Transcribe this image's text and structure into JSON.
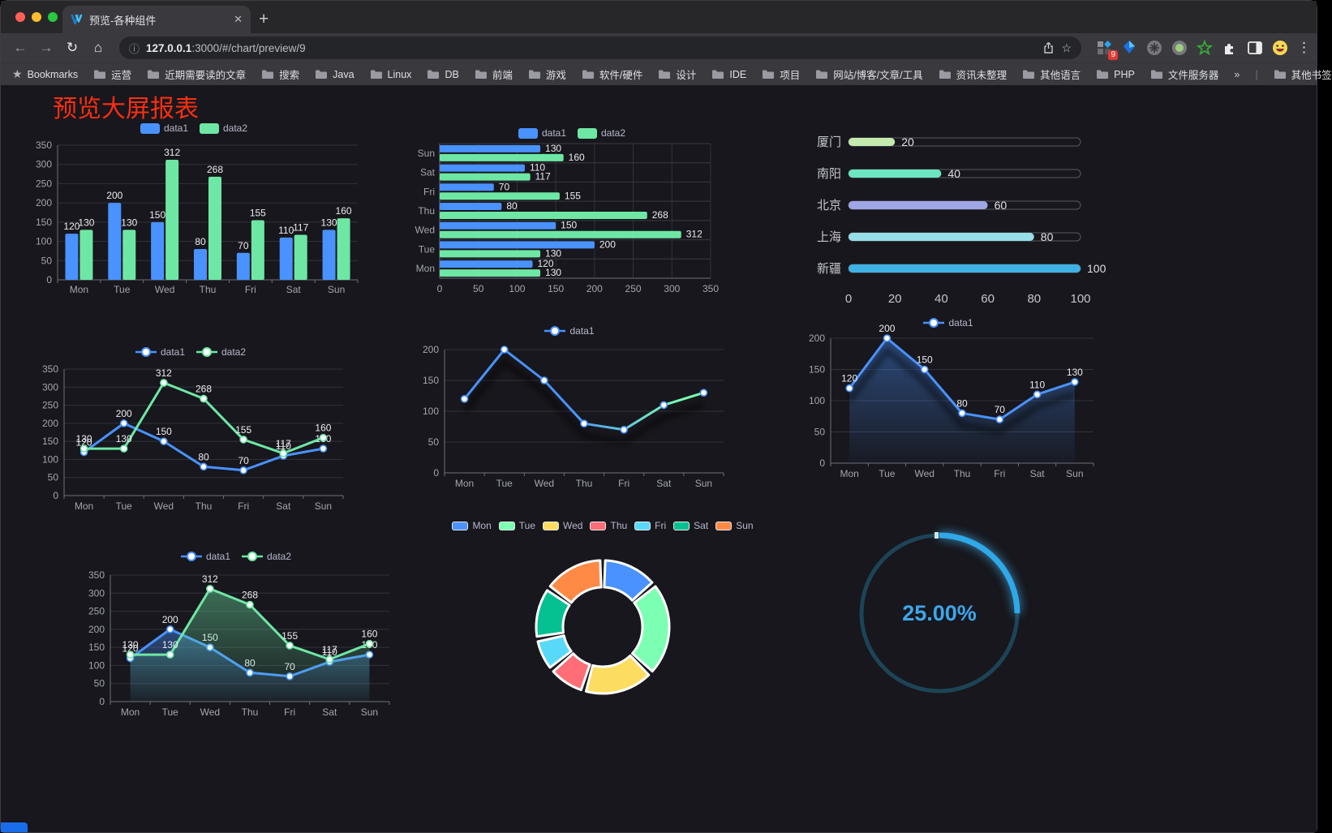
{
  "browser": {
    "tab": {
      "title": "预览-各种组件",
      "close_glyph": "✕",
      "new_tab_glyph": "+"
    },
    "toolbar": {
      "back_glyph": "←",
      "forward_glyph": "→",
      "reload_glyph": "↻",
      "home_glyph": "⌂",
      "url_info_glyph": "ⓘ",
      "url_host": "127.0.0.1",
      "url_rest": ":3000/#/chart/preview/9",
      "star_glyph": "☆",
      "menu_glyph": "⋮",
      "extension_badge": "9"
    },
    "bookmarks": {
      "bar_label": "Bookmarks",
      "star_glyph": "★",
      "folders": [
        "运营",
        "近期需要读的文章",
        "搜索",
        "Java",
        "Linux",
        "DB",
        "前端",
        "游戏",
        "软件/硬件",
        "设计",
        "IDE",
        "项目",
        "网站/博客/文章/工具",
        "资讯未整理",
        "其他语言",
        "PHP",
        "文件服务器"
      ],
      "overflow_glyph": "»",
      "other_bookmarks": "其他书签"
    }
  },
  "page": {
    "title": "预览大屏报表",
    "title_color": "#fa2e10"
  },
  "chart_data": [
    {
      "id": "bar-vertical",
      "type": "bar",
      "categories": [
        "Mon",
        "Tue",
        "Wed",
        "Thu",
        "Fri",
        "Sat",
        "Sun"
      ],
      "series": [
        {
          "name": "data1",
          "color": "#4992ff",
          "values": [
            120,
            200,
            150,
            80,
            70,
            110,
            130
          ]
        },
        {
          "name": "data2",
          "color": "#6ee7a4",
          "values": [
            130,
            130,
            312,
            268,
            155,
            117,
            160
          ]
        }
      ],
      "ylim": [
        0,
        350
      ],
      "ytick": 50,
      "legend_position": "top"
    },
    {
      "id": "bar-horizontal",
      "type": "bar-horizontal",
      "categories": [
        "Mon",
        "Tue",
        "Wed",
        "Thu",
        "Fri",
        "Sat",
        "Sun"
      ],
      "series": [
        {
          "name": "data1",
          "color": "#4992ff",
          "values": [
            120,
            200,
            150,
            80,
            70,
            110,
            130
          ]
        },
        {
          "name": "data2",
          "color": "#6ee7a4",
          "values": [
            130,
            130,
            312,
            268,
            155,
            117,
            160
          ]
        }
      ],
      "xlim": [
        0,
        350
      ],
      "xtick": 50,
      "legend_position": "top"
    },
    {
      "id": "progress-bars",
      "type": "progress",
      "items": [
        {
          "label": "厦门",
          "value": 20,
          "color": "#c4ebad"
        },
        {
          "label": "南阳",
          "value": 40,
          "color": "#6be6c1"
        },
        {
          "label": "北京",
          "value": 60,
          "color": "#a0a7e6"
        },
        {
          "label": "上海",
          "value": 80,
          "color": "#96dee8"
        },
        {
          "label": "新疆",
          "value": 100,
          "color": "#3fb1e3"
        }
      ],
      "xlim": [
        0,
        100
      ],
      "ticks": [
        0,
        20,
        40,
        60,
        80,
        100
      ]
    },
    {
      "id": "line-two-series",
      "type": "line",
      "categories": [
        "Mon",
        "Tue",
        "Wed",
        "Thu",
        "Fri",
        "Sat",
        "Sun"
      ],
      "series": [
        {
          "name": "data1",
          "color": "#4992ff",
          "values": [
            120,
            200,
            150,
            80,
            70,
            110,
            130
          ],
          "labels": true
        },
        {
          "name": "data2",
          "color": "#6ee7a4",
          "values": [
            130,
            130,
            312,
            268,
            155,
            117,
            160
          ],
          "labels": true
        }
      ],
      "ylim": [
        0,
        350
      ],
      "ytick": 50,
      "legend_position": "top"
    },
    {
      "id": "line-gradient",
      "type": "line",
      "categories": [
        "Mon",
        "Tue",
        "Wed",
        "Thu",
        "Fri",
        "Sat",
        "Sun"
      ],
      "series": [
        {
          "name": "data1",
          "color": "#4992ff",
          "gradient": [
            "#4992ff",
            "#7cffb2"
          ],
          "values": [
            120,
            200,
            150,
            80,
            70,
            110,
            130
          ],
          "shadow": true
        }
      ],
      "ylim": [
        0,
        200
      ],
      "ytick": 50,
      "legend_position": "top"
    },
    {
      "id": "line-area",
      "type": "line",
      "categories": [
        "Mon",
        "Tue",
        "Wed",
        "Thu",
        "Fri",
        "Sat",
        "Sun"
      ],
      "series": [
        {
          "name": "data1",
          "color": "#4992ff",
          "values": [
            120,
            200,
            150,
            80,
            70,
            110,
            130
          ],
          "area": true,
          "labels": true,
          "shadow": true
        }
      ],
      "ylim": [
        0,
        200
      ],
      "ytick": 50,
      "legend_position": "top"
    },
    {
      "id": "line-two-area",
      "type": "line",
      "categories": [
        "Mon",
        "Tue",
        "Wed",
        "Thu",
        "Fri",
        "Sat",
        "Sun"
      ],
      "series": [
        {
          "name": "data1",
          "color": "#4992ff",
          "values": [
            120,
            200,
            150,
            80,
            70,
            110,
            130
          ],
          "area": true,
          "labels": true
        },
        {
          "name": "data2",
          "color": "#6ee7a4",
          "values": [
            130,
            130,
            312,
            268,
            155,
            117,
            160
          ],
          "area": true,
          "labels": true
        }
      ],
      "ylim": [
        0,
        350
      ],
      "ytick": 50,
      "legend_position": "top"
    },
    {
      "id": "pie-donut",
      "type": "pie",
      "items": [
        {
          "label": "Mon",
          "value": 120,
          "color": "#4992ff"
        },
        {
          "label": "Tue",
          "value": 200,
          "color": "#7cffb2"
        },
        {
          "label": "Wed",
          "value": 150,
          "color": "#fddd60"
        },
        {
          "label": "Thu",
          "value": 80,
          "color": "#ff6e76"
        },
        {
          "label": "Fri",
          "value": 70,
          "color": "#58d9f9"
        },
        {
          "label": "Sat",
          "value": 110,
          "color": "#05c091"
        },
        {
          "label": "Sun",
          "value": 130,
          "color": "#ff8a45"
        }
      ],
      "legend_position": "top"
    },
    {
      "id": "gauge",
      "type": "gauge",
      "value": 25,
      "label": "25.00%",
      "color": "#2fa8e8",
      "track": "#1d4456"
    }
  ]
}
